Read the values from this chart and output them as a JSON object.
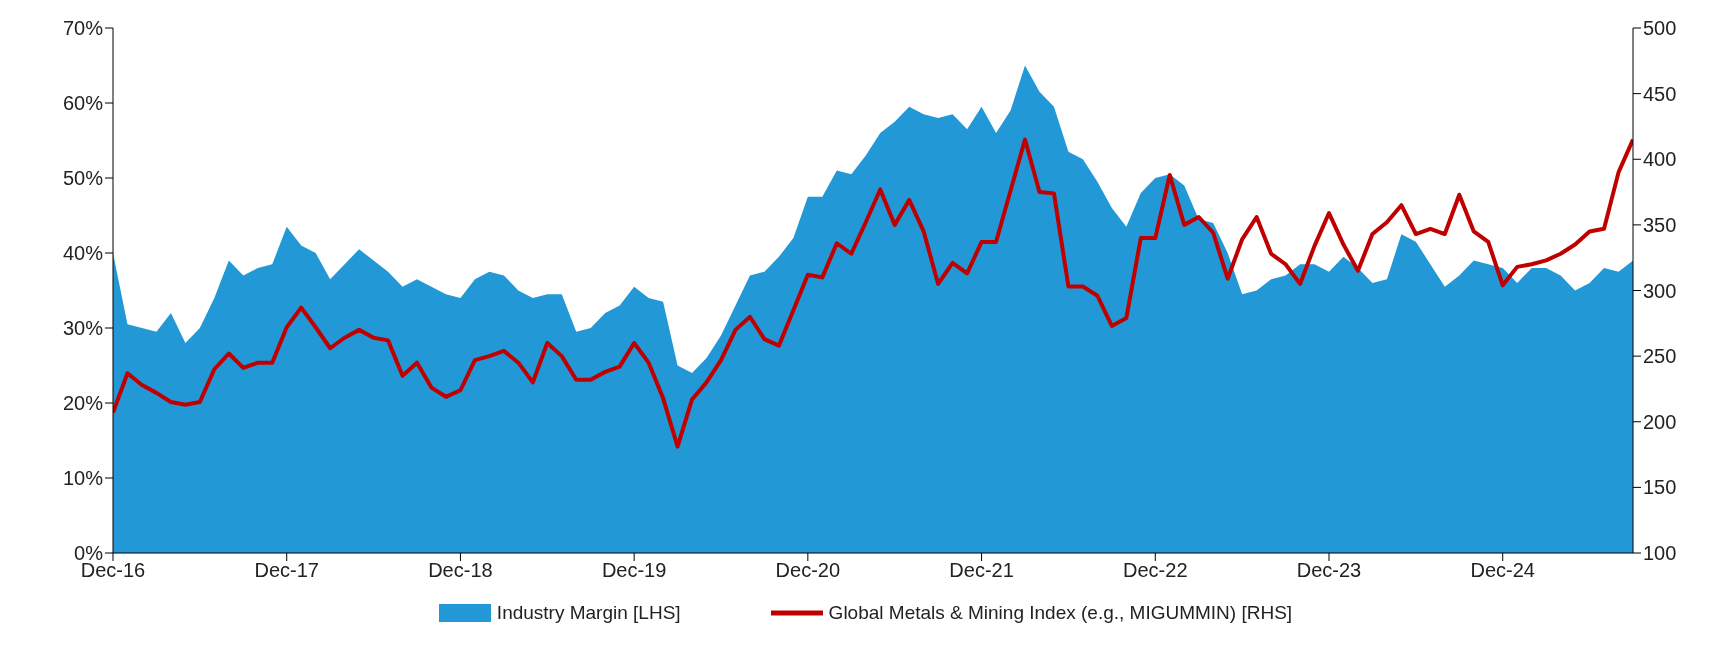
{
  "chart_data": {
    "type": "area",
    "x": [
      "2016-12",
      "2017-01",
      "2017-02",
      "2017-03",
      "2017-04",
      "2017-05",
      "2017-06",
      "2017-07",
      "2017-08",
      "2017-09",
      "2017-10",
      "2017-11",
      "2017-12",
      "2018-01",
      "2018-02",
      "2018-03",
      "2018-04",
      "2018-05",
      "2018-06",
      "2018-07",
      "2018-08",
      "2018-09",
      "2018-10",
      "2018-11",
      "2018-12",
      "2019-01",
      "2019-02",
      "2019-03",
      "2019-04",
      "2019-05",
      "2019-06",
      "2019-07",
      "2019-08",
      "2019-09",
      "2019-10",
      "2019-11",
      "2019-12",
      "2020-01",
      "2020-02",
      "2020-03",
      "2020-04",
      "2020-05",
      "2020-06",
      "2020-07",
      "2020-08",
      "2020-09",
      "2020-10",
      "2020-11",
      "2020-12",
      "2021-01",
      "2021-02",
      "2021-03",
      "2021-04",
      "2021-05",
      "2021-06",
      "2021-07",
      "2021-08",
      "2021-09",
      "2021-10",
      "2021-11",
      "2021-12",
      "2022-01",
      "2022-02",
      "2022-03",
      "2022-04",
      "2022-05",
      "2022-06",
      "2022-07",
      "2022-08",
      "2022-09",
      "2022-10",
      "2022-11",
      "2022-12",
      "2023-01",
      "2023-02",
      "2023-03",
      "2023-04",
      "2023-05",
      "2023-06",
      "2023-07",
      "2023-08",
      "2023-09",
      "2023-10",
      "2023-11",
      "2023-12",
      "2024-01",
      "2024-02",
      "2024-03",
      "2024-04",
      "2024-05",
      "2024-06",
      "2024-07",
      "2024-08",
      "2024-09",
      "2024-10",
      "2024-11",
      "2024-12",
      "2025-01",
      "2025-02",
      "2025-03",
      "2025-04",
      "2025-05",
      "2025-06",
      "2025-07",
      "2025-08",
      "2025-09"
    ],
    "series": [
      {
        "name": "Industry Margin [LHS]",
        "color": "#2299d6",
        "values": [
          40,
          30.5,
          30,
          29.5,
          32,
          28,
          30,
          34,
          39,
          37,
          38,
          38.5,
          43.5,
          41,
          40,
          36.5,
          38.5,
          40.5,
          39,
          37.5,
          35.5,
          36.5,
          35.5,
          34.5,
          34,
          36.5,
          37.5,
          37,
          35,
          34,
          34.5,
          34.5,
          29.5,
          30,
          32,
          33,
          35.5,
          34,
          33.5,
          25,
          24,
          26,
          29,
          33,
          37,
          37.5,
          39.5,
          42,
          47.5,
          47.5,
          51,
          50.5,
          53,
          56,
          57.5,
          59.5,
          58.5,
          58,
          58.5,
          56.5,
          59.5,
          56,
          59,
          65,
          61.5,
          59.5,
          53.5,
          52.5,
          49.5,
          46,
          43.5,
          48,
          50,
          50.5,
          49,
          44.5,
          44,
          40,
          34.5,
          35,
          36.5,
          37,
          38.5,
          38.5,
          37.5,
          39.5,
          38,
          36,
          36.5,
          42.5,
          41.5,
          38.5,
          35.5,
          37,
          39,
          38.5,
          38,
          36,
          38,
          38,
          37,
          35,
          36,
          38,
          37.5,
          39
        ]
      },
      {
        "name": "Global Metals & Mining Index (e.g., MIGUMMIN) [RHS]",
        "type": "line",
        "axis": "y2",
        "color": "#c00000",
        "values": [
          207,
          237,
          228,
          222,
          215,
          213,
          215,
          240,
          252,
          241,
          245,
          245,
          272,
          287,
          272,
          256,
          264,
          270,
          264,
          262,
          235,
          245,
          226,
          219,
          224,
          247,
          250,
          254,
          245,
          230,
          260,
          250,
          232,
          232,
          238,
          242,
          260,
          245,
          218,
          181,
          217,
          230,
          247,
          270,
          280,
          263,
          258,
          285,
          312,
          310,
          336,
          328,
          352,
          377,
          350,
          369,
          345,
          305,
          321,
          313,
          337,
          337,
          376,
          415,
          375,
          374,
          303,
          303,
          296,
          273,
          279,
          340,
          340,
          388,
          350,
          356,
          344,
          309,
          339,
          356,
          328,
          320,
          305,
          334,
          359,
          335,
          315,
          343,
          352,
          365,
          343,
          347,
          343,
          373,
          345,
          337,
          304,
          318,
          320,
          323,
          328,
          335,
          345,
          347,
          390,
          415
        ]
      }
    ],
    "xlim": [
      "2016-12",
      "2025-09"
    ],
    "xticks": [
      {
        "value": "2016-12",
        "label": "Dec-16"
      },
      {
        "value": "2017-12",
        "label": "Dec-17"
      },
      {
        "value": "2018-12",
        "label": "Dec-18"
      },
      {
        "value": "2019-12",
        "label": "Dec-19"
      },
      {
        "value": "2020-12",
        "label": "Dec-20"
      },
      {
        "value": "2021-12",
        "label": "Dec-21"
      },
      {
        "value": "2022-12",
        "label": "Dec-22"
      },
      {
        "value": "2023-12",
        "label": "Dec-23"
      },
      {
        "value": "2024-12",
        "label": "Dec-24"
      }
    ],
    "ylim": [
      0,
      70
    ],
    "yticks": [
      {
        "value": 0,
        "label": "0%"
      },
      {
        "value": 10,
        "label": "10%"
      },
      {
        "value": 20,
        "label": "20%"
      },
      {
        "value": 30,
        "label": "30%"
      },
      {
        "value": 40,
        "label": "40%"
      },
      {
        "value": 50,
        "label": "50%"
      },
      {
        "value": 60,
        "label": "60%"
      },
      {
        "value": 70,
        "label": "70%"
      }
    ],
    "y2lim": [
      100,
      500
    ],
    "y2ticks": [
      100,
      150,
      200,
      250,
      300,
      350,
      400,
      450,
      500
    ],
    "grid": false,
    "legend": "bottom"
  }
}
